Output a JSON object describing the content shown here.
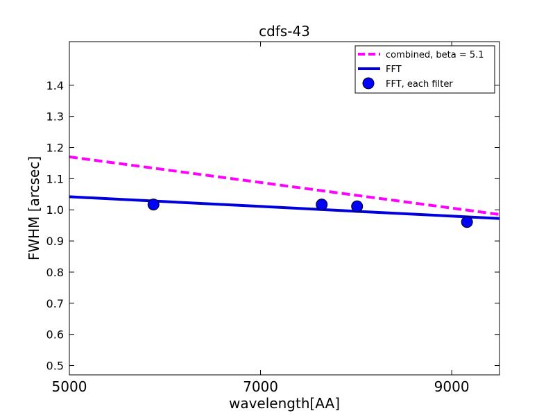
{
  "chart_data": {
    "type": "line",
    "title": "cdfs-43",
    "xlabel": "wavelength[AA]",
    "ylabel": "FWHM [arcsec]",
    "xlim": [
      5000,
      9500
    ],
    "ylim": [
      0.47,
      1.54
    ],
    "xticks": [
      5000,
      7000,
      9000
    ],
    "yticks": [
      0.5,
      0.6,
      0.7,
      0.8,
      0.9,
      1.0,
      1.1,
      1.2,
      1.3,
      1.4
    ],
    "x_tick_labels": [
      "5000",
      "7000",
      "9000"
    ],
    "y_tick_labels": [
      "0.5",
      "0.6",
      "0.7",
      "0.8",
      "0.9",
      "1.0",
      "1.1",
      "1.2",
      "1.3",
      "1.4"
    ],
    "grid": false,
    "legend_position": "top-right",
    "series": [
      {
        "name": "combined, beta = 5.1",
        "kind": "line",
        "style": "dashed",
        "color": "#ff00ff",
        "x": [
          5000,
          9500
        ],
        "y": [
          1.17,
          0.985
        ]
      },
      {
        "name": "FFT",
        "kind": "line",
        "style": "solid",
        "color": "#0000dd",
        "x": [
          5000,
          9500
        ],
        "y": [
          1.042,
          0.972
        ]
      },
      {
        "name": "FFT, each filter",
        "kind": "scatter",
        "color": "#0000ff",
        "x": [
          5880,
          7640,
          8010,
          9160
        ],
        "y": [
          1.017,
          1.017,
          1.011,
          0.961
        ]
      }
    ]
  }
}
